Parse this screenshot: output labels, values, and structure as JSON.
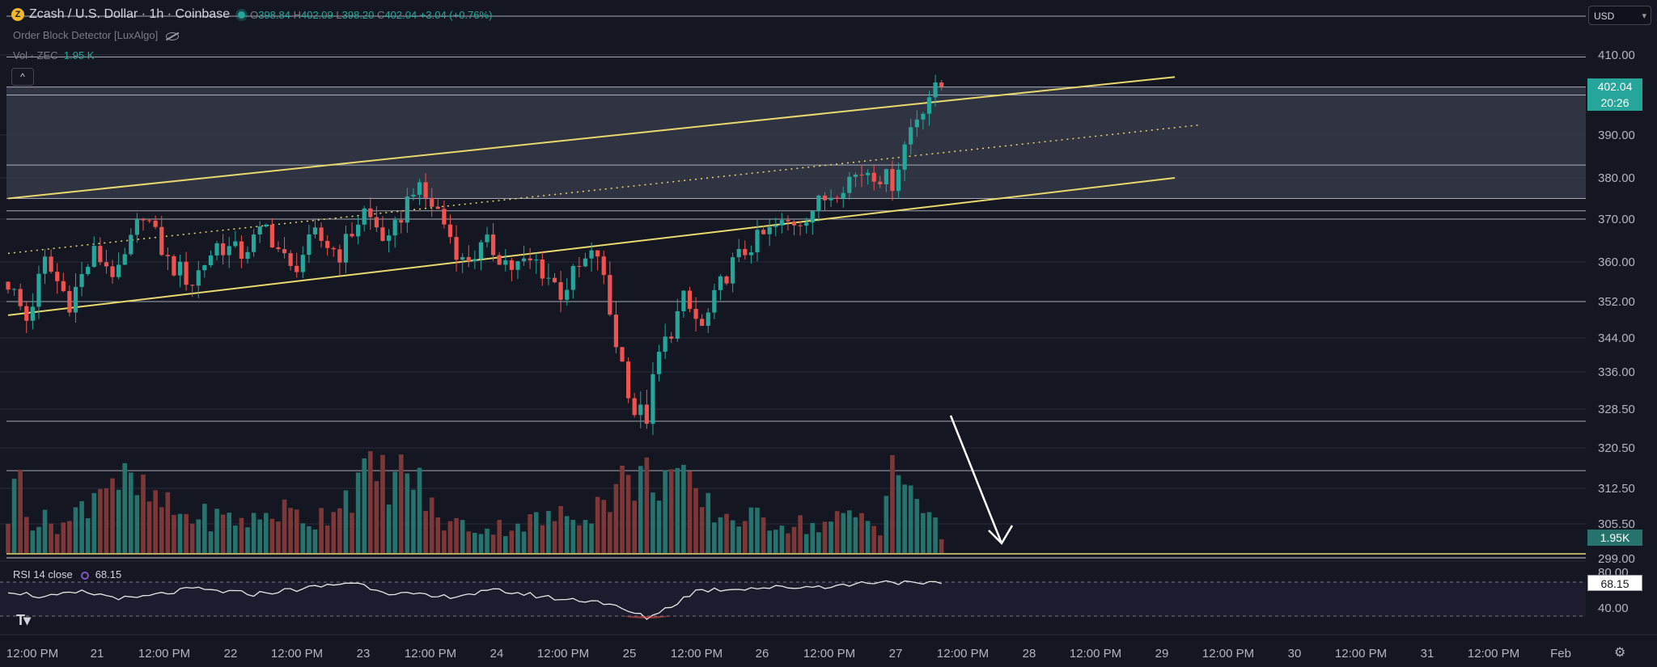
{
  "header": {
    "coin_letter": "Z",
    "title": "Zcash / U.S. Dollar · 1h · Coinbase",
    "ohlc": {
      "o_label": "O",
      "o": "398.84",
      "h_label": "H",
      "h": "402.09",
      "l_label": "L",
      "l": "398.20",
      "c_label": "C",
      "c": "402.04",
      "change": "+3.04 (+0.76%)"
    },
    "indicator": "Order Block Detector [LuxAlgo]",
    "vol_label": "Vol · ZEC",
    "vol_value": "1.95 K",
    "collapse_icon": "^"
  },
  "currency": "USD",
  "price_labels": {
    "last": "402.04",
    "countdown": "20:26",
    "volume": "1.95K",
    "rsi": "68.15"
  },
  "rsi_header": {
    "label": "RSI 14 close",
    "value": "68.15"
  },
  "colors": {
    "bg": "#141722",
    "up": "#26a69a",
    "down": "#ef5350",
    "up_vol": "#26736e",
    "down_vol": "#7d3737",
    "channel": "#e9d96f",
    "grid": "#2a2e39",
    "level": "#c9ccd6",
    "zone": "#3a3e4c",
    "arrow": "#ffffff"
  },
  "chart_data": {
    "type": "candlestick",
    "timeframe": "1h",
    "y_ticks": [
      410.0,
      390.0,
      380.0,
      370.0,
      360.0,
      352.0,
      344.0,
      336.0,
      328.5,
      320.5,
      312.5,
      305.5,
      299.0
    ],
    "x_ticks": [
      "12:00 PM",
      "21",
      "12:00 PM",
      "22",
      "12:00 PM",
      "23",
      "12:00 PM",
      "24",
      "12:00 PM",
      "25",
      "12:00 PM",
      "26",
      "12:00 PM",
      "27",
      "12:00 PM",
      "28",
      "12:00 PM",
      "29",
      "12:00 PM",
      "30",
      "12:00 PM",
      "31",
      "12:00 PM",
      "Feb"
    ],
    "price_path_anchors": [
      [
        0,
        356
      ],
      [
        3,
        348
      ],
      [
        6,
        360
      ],
      [
        10,
        352
      ],
      [
        14,
        362
      ],
      [
        18,
        357
      ],
      [
        22,
        372
      ],
      [
        26,
        360
      ],
      [
        30,
        356
      ],
      [
        34,
        364
      ],
      [
        38,
        362
      ],
      [
        42,
        368
      ],
      [
        46,
        358
      ],
      [
        50,
        366
      ],
      [
        54,
        362
      ],
      [
        58,
        372
      ],
      [
        62,
        364
      ],
      [
        66,
        378
      ],
      [
        70,
        372
      ],
      [
        74,
        360
      ],
      [
        78,
        364
      ],
      [
        82,
        359
      ],
      [
        86,
        360
      ],
      [
        90,
        354
      ],
      [
        94,
        360
      ],
      [
        96,
        362
      ],
      [
        99,
        343
      ],
      [
        102,
        328
      ],
      [
        104,
        327
      ],
      [
        106,
        340
      ],
      [
        110,
        352
      ],
      [
        113,
        346
      ],
      [
        117,
        358
      ],
      [
        121,
        364
      ],
      [
        125,
        368
      ],
      [
        129,
        370
      ],
      [
        133,
        375
      ],
      [
        137,
        380
      ],
      [
        140,
        382
      ],
      [
        144,
        379
      ],
      [
        147,
        392
      ],
      [
        150,
        400
      ],
      [
        152,
        402.04
      ]
    ],
    "volume_anchors": [
      [
        0,
        0.35
      ],
      [
        2,
        0.75
      ],
      [
        4,
        0.3
      ],
      [
        10,
        0.28
      ],
      [
        16,
        0.75
      ],
      [
        20,
        0.6
      ],
      [
        28,
        0.35
      ],
      [
        40,
        0.3
      ],
      [
        44,
        0.4
      ],
      [
        50,
        0.3
      ],
      [
        58,
        0.7
      ],
      [
        66,
        0.72
      ],
      [
        70,
        0.3
      ],
      [
        78,
        0.22
      ],
      [
        86,
        0.3
      ],
      [
        92,
        0.35
      ],
      [
        96,
        0.45
      ],
      [
        100,
        0.65
      ],
      [
        104,
        0.7
      ],
      [
        108,
        0.75
      ],
      [
        112,
        0.5
      ],
      [
        116,
        0.35
      ],
      [
        124,
        0.3
      ],
      [
        132,
        0.25
      ],
      [
        138,
        0.35
      ],
      [
        142,
        0.25
      ],
      [
        144,
        0.95
      ],
      [
        146,
        0.5
      ],
      [
        148,
        0.55
      ],
      [
        150,
        0.35
      ],
      [
        152,
        0.15
      ]
    ],
    "rsi_anchors": [
      [
        0,
        60
      ],
      [
        6,
        52
      ],
      [
        12,
        58
      ],
      [
        20,
        50
      ],
      [
        30,
        62
      ],
      [
        40,
        56
      ],
      [
        50,
        64
      ],
      [
        56,
        70
      ],
      [
        62,
        58
      ],
      [
        70,
        52
      ],
      [
        80,
        60
      ],
      [
        90,
        50
      ],
      [
        96,
        48
      ],
      [
        100,
        38
      ],
      [
        104,
        28
      ],
      [
        108,
        42
      ],
      [
        112,
        60
      ],
      [
        120,
        63
      ],
      [
        128,
        64
      ],
      [
        136,
        66
      ],
      [
        140,
        70
      ],
      [
        144,
        71
      ],
      [
        148,
        67
      ],
      [
        152,
        68.15
      ]
    ],
    "channel": {
      "upper": [
        [
          0,
          375
        ],
        [
          190,
          404.5
        ]
      ],
      "middle": [
        [
          0,
          362
        ],
        [
          194,
          392.5
        ]
      ],
      "lower": [
        [
          0,
          349
        ],
        [
          190,
          380
        ]
      ]
    },
    "horizontal_levels": [
      409.5,
      402.0,
      400.0,
      383.0,
      375.0,
      372.0,
      370.0,
      352.0,
      326.0,
      316.0
    ],
    "zone": [
      375.0,
      402.0
    ],
    "rsi_levels": [
      70,
      30
    ],
    "rsi_axis": [
      "80.00",
      "40.00"
    ],
    "arrow": {
      "from": [
        145,
        327
      ],
      "to": [
        153,
        297
      ]
    }
  }
}
